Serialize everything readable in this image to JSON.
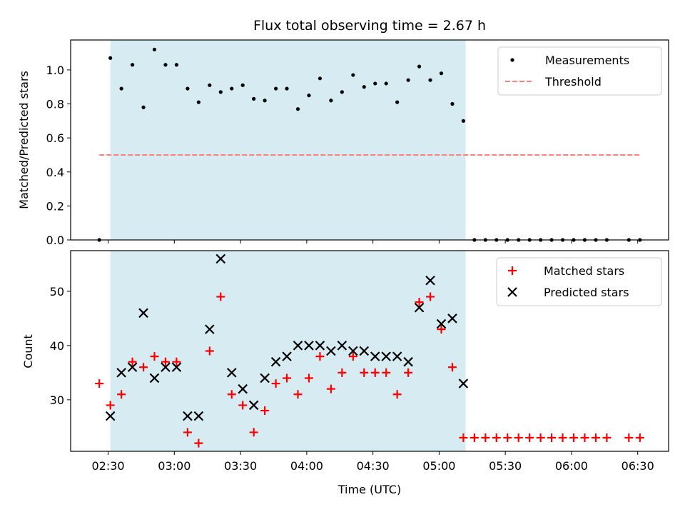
{
  "chart_data": [
    {
      "type": "scatter",
      "title": "Flux total observing time = 2.67 h",
      "xlabel": "",
      "ylabel": "Matched/Predicted stars",
      "xlim": [
        "02:13",
        "06:44"
      ],
      "ylim": [
        0,
        1.176
      ],
      "yticks": [
        "0.0",
        "0.2",
        "0.4",
        "0.6",
        "0.8",
        "1.0"
      ],
      "shaded_range": [
        "02:31",
        "05:12"
      ],
      "shade_color": "#add8e6",
      "threshold": {
        "value": 0.5,
        "x_range": [
          "02:26",
          "06:31"
        ],
        "color": "#ff7f7f"
      },
      "legend": {
        "position": "top-right",
        "entries": [
          "Measurements",
          "Threshold"
        ]
      },
      "series": [
        {
          "name": "Measurements",
          "color": "#000000",
          "x": [
            "02:26",
            "02:31",
            "02:36",
            "02:41",
            "02:46",
            "02:51",
            "02:56",
            "03:01",
            "03:06",
            "03:11",
            "03:16",
            "03:21",
            "03:26",
            "03:31",
            "03:36",
            "03:41",
            "03:46",
            "03:51",
            "03:56",
            "04:01",
            "04:06",
            "04:11",
            "04:16",
            "04:21",
            "04:26",
            "04:31",
            "04:36",
            "04:41",
            "04:46",
            "04:51",
            "04:56",
            "05:01",
            "05:06",
            "05:11",
            "05:16",
            "05:21",
            "05:26",
            "05:31",
            "05:36",
            "05:41",
            "05:46",
            "05:51",
            "05:56",
            "06:01",
            "06:06",
            "06:11",
            "06:16",
            "06:26",
            "06:31"
          ],
          "y": [
            0,
            1.07,
            0.89,
            1.03,
            0.78,
            1.12,
            1.03,
            1.03,
            0.89,
            0.81,
            0.91,
            0.87,
            0.89,
            0.91,
            0.83,
            0.82,
            0.89,
            0.89,
            0.77,
            0.85,
            0.95,
            0.82,
            0.87,
            0.97,
            0.9,
            0.92,
            0.92,
            0.81,
            0.94,
            1.02,
            0.94,
            0.98,
            0.8,
            0.7,
            0,
            0,
            0,
            0,
            0,
            0,
            0,
            0,
            0,
            0,
            0,
            0,
            0,
            0,
            0
          ]
        }
      ]
    },
    {
      "type": "scatter",
      "title": "",
      "xlabel": "Time (UTC)",
      "ylabel": "Count",
      "xlim": [
        "02:13",
        "06:44"
      ],
      "ylim": [
        20.5,
        57.5
      ],
      "yticks": [
        "30",
        "40",
        "50"
      ],
      "xticks": [
        "02:30",
        "03:00",
        "03:30",
        "04:00",
        "04:30",
        "05:00",
        "05:30",
        "06:00",
        "06:30"
      ],
      "shaded_range": [
        "02:31",
        "05:12"
      ],
      "legend": {
        "position": "top-right",
        "entries": [
          "Matched stars",
          "Predicted stars"
        ]
      },
      "series": [
        {
          "name": "Matched stars",
          "marker": "+",
          "color": "#ff0000",
          "x": [
            "02:26",
            "02:31",
            "02:36",
            "02:41",
            "02:46",
            "02:51",
            "02:56",
            "03:01",
            "03:06",
            "03:11",
            "03:16",
            "03:21",
            "03:26",
            "03:31",
            "03:36",
            "03:41",
            "03:46",
            "03:51",
            "03:56",
            "04:01",
            "04:06",
            "04:11",
            "04:16",
            "04:21",
            "04:26",
            "04:31",
            "04:36",
            "04:41",
            "04:46",
            "04:51",
            "04:56",
            "05:01",
            "05:06",
            "05:11",
            "05:16",
            "05:21",
            "05:26",
            "05:31",
            "05:36",
            "05:41",
            "05:46",
            "05:51",
            "05:56",
            "06:01",
            "06:06",
            "06:11",
            "06:16",
            "06:26",
            "06:31"
          ],
          "y": [
            33,
            29,
            31,
            37,
            36,
            38,
            37,
            37,
            24,
            22,
            39,
            49,
            31,
            29,
            24,
            28,
            33,
            34,
            31,
            34,
            38,
            32,
            35,
            38,
            35,
            35,
            35,
            31,
            35,
            48,
            49,
            43,
            36,
            23,
            23,
            23,
            23,
            23,
            23,
            23,
            23,
            23,
            23,
            23,
            23,
            23,
            23,
            23,
            23
          ]
        },
        {
          "name": "Predicted stars",
          "marker": "x",
          "color": "#000000",
          "x": [
            "02:31",
            "02:36",
            "02:41",
            "02:46",
            "02:51",
            "02:56",
            "03:01",
            "03:06",
            "03:11",
            "03:16",
            "03:21",
            "03:26",
            "03:31",
            "03:36",
            "03:41",
            "03:46",
            "03:51",
            "03:56",
            "04:01",
            "04:06",
            "04:11",
            "04:16",
            "04:21",
            "04:26",
            "04:31",
            "04:36",
            "04:41",
            "04:46",
            "04:51",
            "04:56",
            "05:01",
            "05:06",
            "05:11"
          ],
          "y": [
            27,
            35,
            36,
            46,
            34,
            36,
            36,
            27,
            27,
            43,
            56,
            35,
            32,
            29,
            34,
            37,
            38,
            40,
            40,
            40,
            39,
            40,
            39,
            39,
            38,
            38,
            38,
            37,
            47,
            52,
            44,
            45,
            33
          ]
        }
      ]
    }
  ]
}
